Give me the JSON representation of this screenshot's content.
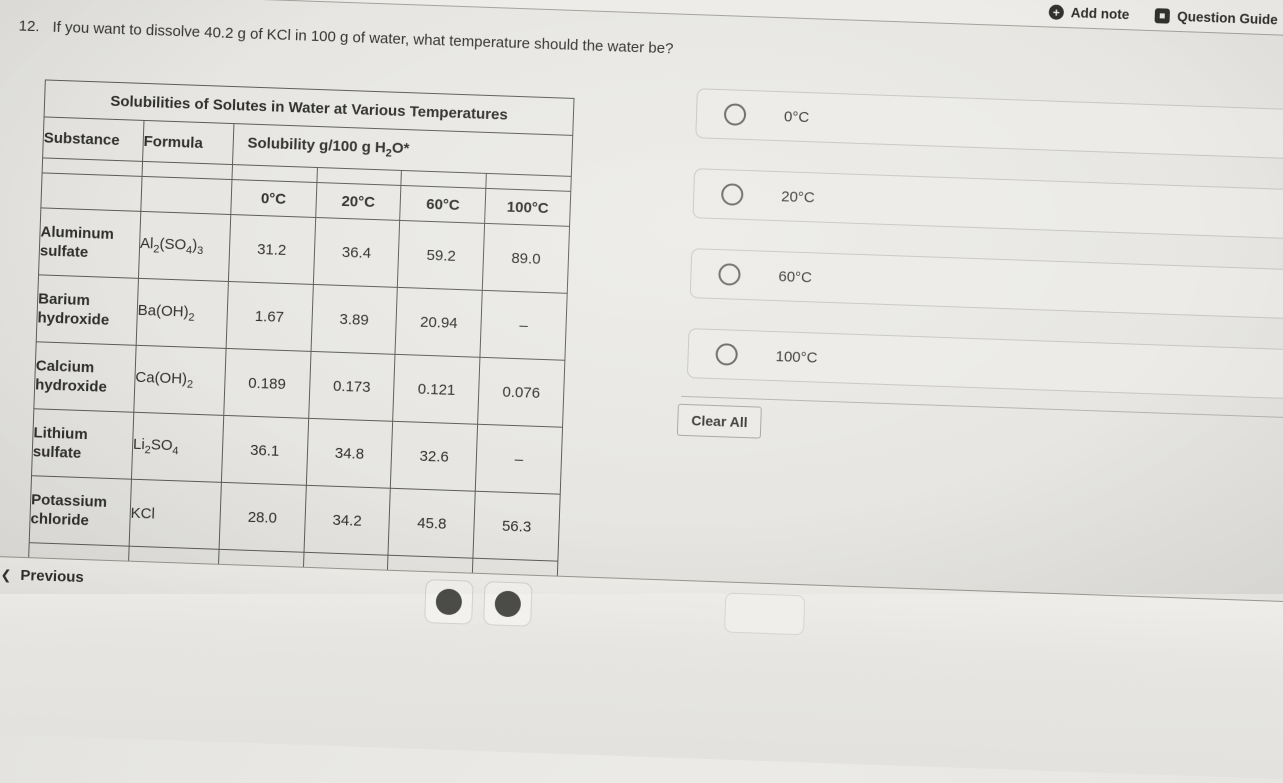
{
  "toolbar": {
    "add_note_label": "Add note",
    "question_guide_label": "Question Guide",
    "add_note_icon": "plus-circle-icon",
    "question_guide_icon": "guide-square-icon"
  },
  "question": {
    "number": "12.",
    "text": "If you want to dissolve 40.2 g of KCl in 100 g of water, what temperature should the water be?"
  },
  "table": {
    "title": "Solubilities of Solutes in Water at Various Temperatures",
    "col_headers": [
      "Substance",
      "Formula"
    ],
    "solubility_header": "Solubility g/100 g H_2O*",
    "temp_headers": [
      "0°C",
      "20°C",
      "60°C",
      "100°C"
    ],
    "rows": [
      {
        "substance": "Aluminum sulfate",
        "formula": "Al_2(SO_4)_3",
        "values": [
          "31.2",
          "36.4",
          "59.2",
          "89.0"
        ]
      },
      {
        "substance": "Barium hydroxide",
        "formula": "Ba(OH)_2",
        "values": [
          "1.67",
          "3.89",
          "20.94",
          "–"
        ]
      },
      {
        "substance": "Calcium hydroxide",
        "formula": "Ca(OH)_2",
        "values": [
          "0.189",
          "0.173",
          "0.121",
          "0.076"
        ]
      },
      {
        "substance": "Lithium sulfate",
        "formula": "Li_2SO_4",
        "values": [
          "36.1",
          "34.8",
          "32.6",
          "–"
        ]
      },
      {
        "substance": "Potassium chloride",
        "formula": "KCl",
        "values": [
          "28.0",
          "34.2",
          "45.8",
          "56.3"
        ]
      },
      {
        "substance": "",
        "formula": "",
        "values": [
          "",
          "",
          "",
          ""
        ],
        "partial": true
      }
    ]
  },
  "options": [
    {
      "label": "0°C",
      "selected": false
    },
    {
      "label": "20°C",
      "selected": false
    },
    {
      "label": "60°C",
      "selected": false
    },
    {
      "label": "100°C",
      "selected": false
    }
  ],
  "actions": {
    "clear_all_label": "Clear All"
  },
  "footer": {
    "previous_label": "Previous",
    "previous_chevron_icon": "chevron-left-icon"
  },
  "colors": {
    "background": "#e7e6e2",
    "header_background": "#edece9",
    "table_border": "#5d5c57",
    "card_background": "#ecebe7",
    "card_border": "#c8c7c2",
    "text": "#333331",
    "footer_line": "#97968f",
    "icon_dark": "#31312f"
  }
}
